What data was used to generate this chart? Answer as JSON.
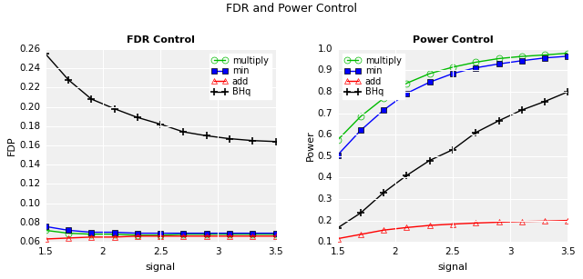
{
  "title": "FDR and Power Control",
  "signal": [
    1.5,
    1.7,
    1.9,
    2.1,
    2.3,
    2.5,
    2.7,
    2.9,
    3.1,
    3.3,
    3.5
  ],
  "fdr_multiply": [
    0.072,
    0.069,
    0.068,
    0.068,
    0.067,
    0.067,
    0.068,
    0.068,
    0.068,
    0.068,
    0.068
  ],
  "fdr_min": [
    0.076,
    0.072,
    0.07,
    0.07,
    0.069,
    0.069,
    0.069,
    0.069,
    0.069,
    0.069,
    0.069
  ],
  "fdr_add": [
    0.063,
    0.064,
    0.065,
    0.065,
    0.066,
    0.066,
    0.066,
    0.066,
    0.066,
    0.066,
    0.066
  ],
  "fdr_BHq": [
    0.255,
    0.228,
    0.208,
    0.198,
    0.189,
    0.182,
    0.174,
    0.17,
    0.167,
    0.165,
    0.164
  ],
  "power_multiply": [
    0.575,
    0.685,
    0.77,
    0.84,
    0.885,
    0.915,
    0.938,
    0.955,
    0.965,
    0.972,
    0.98
  ],
  "power_min": [
    0.505,
    0.62,
    0.715,
    0.793,
    0.845,
    0.885,
    0.912,
    0.93,
    0.945,
    0.958,
    0.966
  ],
  "power_add": [
    0.115,
    0.135,
    0.155,
    0.167,
    0.177,
    0.183,
    0.188,
    0.192,
    0.195,
    0.197,
    0.2
  ],
  "power_BHq": [
    0.165,
    0.235,
    0.33,
    0.41,
    0.48,
    0.53,
    0.61,
    0.665,
    0.715,
    0.755,
    0.8
  ],
  "color_multiply": "#00bb00",
  "color_min": "#0000ff",
  "color_add": "#ff0000",
  "color_BHq": "#000000",
  "fdr_title": "FDR Control",
  "power_title": "Power Control",
  "xlabel": "signal",
  "fdr_ylabel": "FDP",
  "power_ylabel": "Power",
  "fdr_ylim": [
    0.06,
    0.26
  ],
  "fdr_yticks": [
    0.06,
    0.08,
    0.1,
    0.12,
    0.14,
    0.16,
    0.18,
    0.2,
    0.22,
    0.24,
    0.26
  ],
  "power_ylim": [
    0.1,
    1.0
  ],
  "power_yticks": [
    0.1,
    0.2,
    0.3,
    0.4,
    0.5,
    0.6,
    0.7,
    0.8,
    0.9,
    1.0
  ],
  "xticks": [
    1.5,
    2.0,
    2.5,
    3.0,
    3.5
  ],
  "xlim": [
    1.5,
    3.5
  ],
  "bg_color": "#f0f0f0",
  "legend_labels": [
    "multiply",
    "min",
    "add",
    "BHq"
  ]
}
